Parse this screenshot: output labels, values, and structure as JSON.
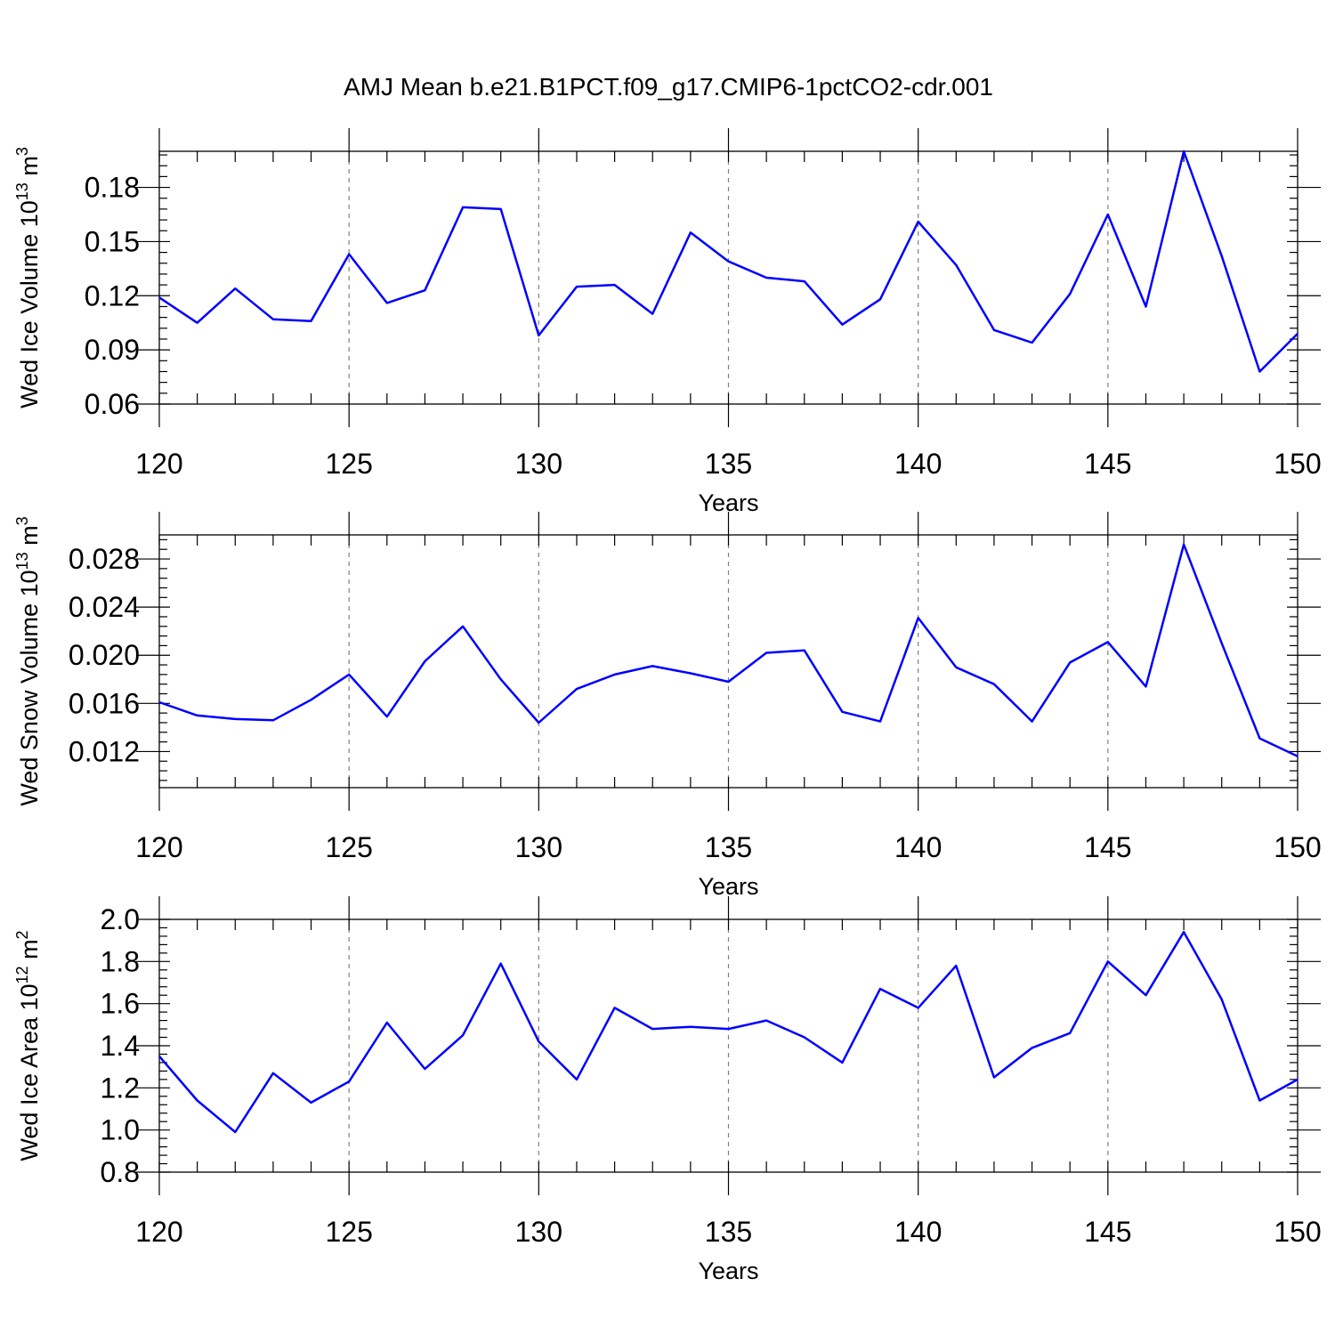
{
  "title": "AMJ Mean b.e21.B1PCT.f09_g17.CMIP6-1pctCO2-cdr.001",
  "colors": {
    "series": "#0000ff",
    "axes": "#000000",
    "grid": "#808080"
  },
  "chart_data": [
    {
      "type": "line",
      "xlabel": "Years",
      "ylabel": {
        "text": "Wed Ice Volume 10",
        "exp": "13",
        "unit": " m",
        "unit_exp": "3"
      },
      "xlim": [
        120,
        150
      ],
      "ylim": [
        0.06,
        0.2
      ],
      "x_ticks": [
        120,
        125,
        130,
        135,
        140,
        145,
        150
      ],
      "y_ticks": [
        "0.06",
        "0.09",
        "0.12",
        "0.15",
        "0.18"
      ],
      "grid": "vertical dashed at major x ticks",
      "x": [
        120,
        121,
        122,
        123,
        124,
        125,
        126,
        127,
        128,
        129,
        130,
        131,
        132,
        133,
        134,
        135,
        136,
        137,
        138,
        139,
        140,
        141,
        142,
        143,
        144,
        145,
        146,
        147,
        148,
        149,
        150
      ],
      "values": [
        0.119,
        0.105,
        0.124,
        0.107,
        0.106,
        0.143,
        0.116,
        0.123,
        0.169,
        0.168,
        0.098,
        0.125,
        0.126,
        0.11,
        0.155,
        0.139,
        0.13,
        0.128,
        0.104,
        0.118,
        0.161,
        0.137,
        0.101,
        0.094,
        0.121,
        0.165,
        0.114,
        0.2,
        0.142,
        0.078,
        0.099
      ]
    },
    {
      "type": "line",
      "xlabel": "Years",
      "ylabel": {
        "text": "Wed Snow Volume 10",
        "exp": "13",
        "unit": " m",
        "unit_exp": "3"
      },
      "xlim": [
        120,
        150
      ],
      "ylim": [
        0.009,
        0.03
      ],
      "x_ticks": [
        120,
        125,
        130,
        135,
        140,
        145,
        150
      ],
      "y_ticks": [
        "0.012",
        "0.016",
        "0.020",
        "0.024",
        "0.028"
      ],
      "grid": "vertical dashed at major x ticks",
      "x": [
        120,
        121,
        122,
        123,
        124,
        125,
        126,
        127,
        128,
        129,
        130,
        131,
        132,
        133,
        134,
        135,
        136,
        137,
        138,
        139,
        140,
        141,
        142,
        143,
        144,
        145,
        146,
        147,
        148,
        149,
        150
      ],
      "values": [
        0.0161,
        0.015,
        0.0147,
        0.0146,
        0.0163,
        0.0184,
        0.0149,
        0.0195,
        0.0224,
        0.018,
        0.0144,
        0.0172,
        0.0184,
        0.0191,
        0.0185,
        0.0178,
        0.0202,
        0.0204,
        0.0153,
        0.0145,
        0.0231,
        0.019,
        0.0176,
        0.0145,
        0.0194,
        0.0211,
        0.0174,
        0.0292,
        0.021,
        0.0131,
        0.0116
      ]
    },
    {
      "type": "line",
      "xlabel": "Years",
      "ylabel": {
        "text": "Wed Ice Area 10",
        "exp": "12",
        "unit": " m",
        "unit_exp": "2"
      },
      "xlim": [
        120,
        150
      ],
      "ylim": [
        0.8,
        2.0
      ],
      "x_ticks": [
        120,
        125,
        130,
        135,
        140,
        145,
        150
      ],
      "y_ticks": [
        "0.8",
        "1.0",
        "1.2",
        "1.4",
        "1.6",
        "1.8",
        "2.0"
      ],
      "grid": "vertical dashed at major x ticks",
      "x": [
        120,
        121,
        122,
        123,
        124,
        125,
        126,
        127,
        128,
        129,
        130,
        131,
        132,
        133,
        134,
        135,
        136,
        137,
        138,
        139,
        140,
        141,
        142,
        143,
        144,
        145,
        146,
        147,
        148,
        149,
        150
      ],
      "values": [
        1.35,
        1.14,
        0.99,
        1.27,
        1.13,
        1.23,
        1.51,
        1.29,
        1.45,
        1.79,
        1.42,
        1.24,
        1.58,
        1.48,
        1.49,
        1.48,
        1.52,
        1.44,
        1.32,
        1.67,
        1.58,
        1.78,
        1.25,
        1.39,
        1.46,
        1.8,
        1.64,
        1.94,
        1.62,
        1.14,
        1.24
      ]
    }
  ]
}
